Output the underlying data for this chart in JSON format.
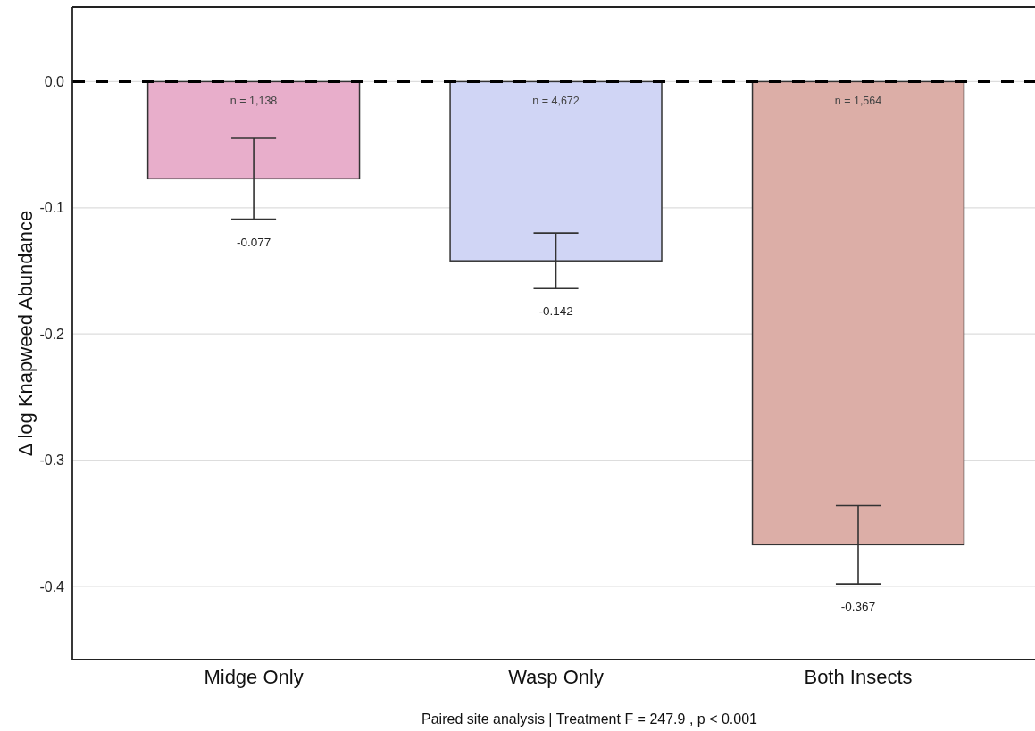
{
  "chart_data": {
    "type": "bar",
    "xlabel": "Paired site analysis | Treatment F = 247.9 , p < 0.001",
    "ylabel": "Δ log Knapweed Abundance",
    "categories": [
      "Midge Only",
      "Wasp Only",
      "Both Insects"
    ],
    "values": [
      -0.077,
      -0.142,
      -0.367
    ],
    "colors": [
      "#e8aecb",
      "#d0d5f5",
      "#dcaea7"
    ],
    "errors": [
      0.032,
      0.022,
      0.031
    ],
    "ylim": [
      -0.458,
      0.059
    ],
    "yticks": [
      {
        "value": 0,
        "label": "0.0"
      },
      -0.1,
      -0.2,
      -0.3,
      -0.4
    ],
    "grid": "y",
    "ref_lines": [
      {
        "axis": "y",
        "value": 0,
        "color": "#000000",
        "line_style": "dashed"
      }
    ],
    "annotations": [
      "n = 1,138",
      "n = 4,672",
      "n = 1,564",
      "-0.077",
      "-0.142",
      "-0.367"
    ]
  }
}
